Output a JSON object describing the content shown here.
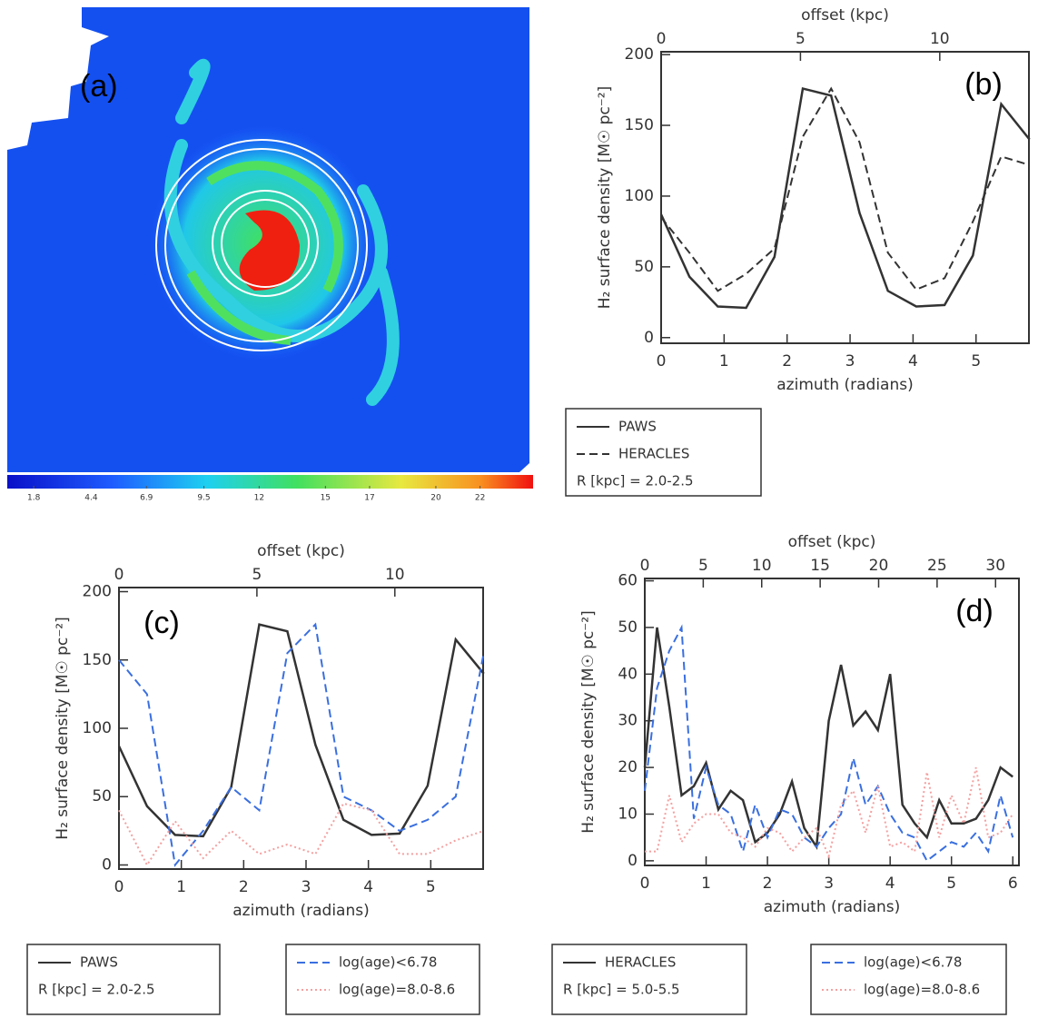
{
  "chart_data": [
    {
      "type": "image",
      "label": "(a)",
      "colorbar_ticks": [
        1.8,
        4.4,
        6.9,
        9.5,
        12,
        15,
        17,
        20,
        22
      ],
      "clim": [
        0.6,
        24.4
      ]
    },
    {
      "type": "line",
      "label": "(b)",
      "xlabel": "azimuth (radians)",
      "x2label": "offset (kpc)",
      "ylabel": "H₂ surface density [M☉ pc⁻²]",
      "x": [
        0,
        0.45,
        0.9,
        1.35,
        1.8,
        2.25,
        2.7,
        3.15,
        3.6,
        4.05,
        4.5,
        4.95,
        5.4,
        5.85
      ],
      "series": [
        {
          "name": "PAWS",
          "color": "#333333",
          "dash": "solid",
          "values": [
            87,
            43,
            22,
            21,
            57,
            176,
            171,
            88,
            33,
            22,
            23,
            58,
            165,
            140
          ]
        },
        {
          "name": "HERACLES",
          "color": "#333333",
          "dash": "dashed",
          "values": [
            85,
            60,
            33,
            45,
            63,
            142,
            176,
            138,
            60,
            34,
            42,
            82,
            128,
            122
          ]
        }
      ],
      "legend_note": "R [kpc] = 2.0-2.5",
      "xlim": [
        0,
        5.84
      ],
      "xticks": [
        0,
        1,
        2,
        3,
        4,
        5
      ],
      "x2lim": [
        0,
        13.2
      ],
      "x2ticks": [
        0,
        5,
        10
      ],
      "ylim": [
        -4,
        202
      ],
      "yticks": [
        0,
        50,
        100,
        150,
        200
      ]
    },
    {
      "type": "line",
      "label": "(c)",
      "xlabel": "azimuth (radians)",
      "x2label": "offset (kpc)",
      "ylabel": "H₂ surface density [M☉ pc⁻²]",
      "x": [
        0,
        0.45,
        0.9,
        1.35,
        1.8,
        2.25,
        2.7,
        3.15,
        3.6,
        4.05,
        4.5,
        4.95,
        5.4,
        5.85
      ],
      "series": [
        {
          "name": "PAWS",
          "color": "#333333",
          "dash": "solid",
          "values": [
            87,
            43,
            22,
            21,
            57,
            176,
            171,
            88,
            33,
            22,
            23,
            58,
            165,
            140
          ]
        },
        {
          "name": "log(age)<6.78",
          "color": "#3a6fe0",
          "dash": "dashed",
          "values": [
            150,
            125,
            0,
            25,
            57,
            40,
            155,
            176,
            50,
            40,
            25,
            33,
            50,
            155
          ]
        },
        {
          "name": "log(age)=8.0-8.6",
          "color": "#f4a0a0",
          "dash": "dotted",
          "values": [
            40,
            0,
            32,
            5,
            25,
            8,
            15,
            8,
            45,
            40,
            8,
            8,
            18,
            25
          ]
        }
      ],
      "legend_note": "R [kpc] = 2.0-2.5",
      "xlim": [
        0,
        5.84
      ],
      "xticks": [
        0,
        1,
        2,
        3,
        4,
        5
      ],
      "x2lim": [
        0,
        13.2
      ],
      "x2ticks": [
        0,
        5,
        10
      ],
      "ylim": [
        -3,
        203
      ],
      "yticks": [
        0,
        50,
        100,
        150,
        200
      ]
    },
    {
      "type": "line",
      "label": "(d)",
      "xlabel": "azimuth (radians)",
      "x2label": "offset (kpc)",
      "ylabel": "H₂ surface density [M☉ pc⁻²]",
      "x": [
        0,
        0.2,
        0.4,
        0.6,
        0.8,
        1.0,
        1.2,
        1.4,
        1.6,
        1.8,
        2.0,
        2.2,
        2.4,
        2.6,
        2.8,
        3.0,
        3.2,
        3.4,
        3.6,
        3.8,
        4.0,
        4.2,
        4.4,
        4.6,
        4.8,
        5.0,
        5.2,
        5.4,
        5.6,
        5.8,
        6.0
      ],
      "series": [
        {
          "name": "HERACLES",
          "color": "#333333",
          "dash": "solid",
          "values": [
            20,
            50,
            33,
            14,
            16,
            21,
            11,
            15,
            13,
            4,
            6,
            10,
            17,
            7,
            3,
            30,
            42,
            29,
            32,
            28,
            40,
            12,
            8,
            5,
            13,
            8,
            8,
            9,
            13,
            20,
            18
          ]
        },
        {
          "name": "log(age)<6.78",
          "color": "#3a6fe0",
          "dash": "dashed",
          "values": [
            15,
            37,
            45,
            50,
            9,
            20,
            12,
            10,
            2,
            12,
            5,
            11,
            10,
            5,
            3,
            7,
            10,
            22,
            12,
            16,
            10,
            6,
            5,
            0,
            2,
            4,
            3,
            6,
            2,
            14,
            5
          ]
        },
        {
          "name": "log(age)=8.0-8.6",
          "color": "#f4a0a0",
          "dash": "dotted",
          "values": [
            2,
            2,
            14,
            4,
            8,
            10,
            10,
            6,
            5,
            3,
            7,
            6,
            2,
            5,
            7,
            1,
            12,
            15,
            6,
            16,
            3,
            4,
            2,
            19,
            5,
            14,
            8,
            20,
            5,
            6,
            10
          ]
        }
      ],
      "legend_note": "R [kpc] = 5.0-5.5",
      "xlim": [
        0,
        6.1
      ],
      "xticks": [
        0,
        1,
        2,
        3,
        4,
        5,
        6
      ],
      "x2lim": [
        0,
        32
      ],
      "x2ticks": [
        0,
        5,
        10,
        15,
        20,
        25,
        30
      ],
      "ylim": [
        -1,
        60.5
      ],
      "yticks": [
        0,
        10,
        20,
        30,
        40,
        50,
        60
      ]
    }
  ]
}
